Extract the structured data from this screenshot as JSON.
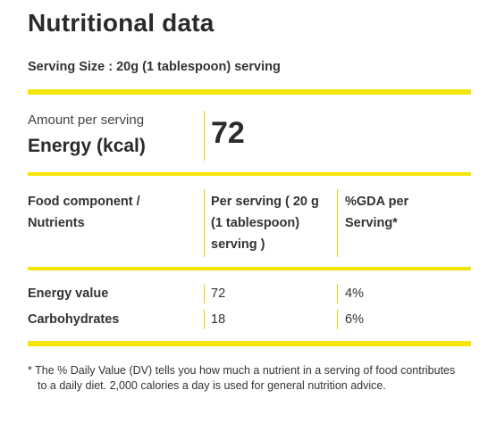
{
  "title": "Nutritional data",
  "serving_size": "Serving Size : 20g (1 tablespoon) serving",
  "amount_label": "Amount per serving",
  "energy_label": "Energy (kcal)",
  "energy_value": "72",
  "table": {
    "headers": {
      "component": "Food component / Nutrients",
      "per_serving": "Per serving ( 20 g (1 tablespoon) serving )",
      "gda": "%GDA per Serving*"
    },
    "rows": [
      {
        "name": "Energy value",
        "per_serving": "72",
        "gda": "4%"
      },
      {
        "name": "Carbohydrates",
        "per_serving": "18",
        "gda": "6%"
      }
    ]
  },
  "footnote": "* The % Daily Value (DV) tells you how much a nutrient in a serving of food contributes to a daily diet. 2,000 calories a day is used for general nutrition advice.",
  "colors": {
    "accent": "#f5e507",
    "text": "#2a2a2a"
  }
}
